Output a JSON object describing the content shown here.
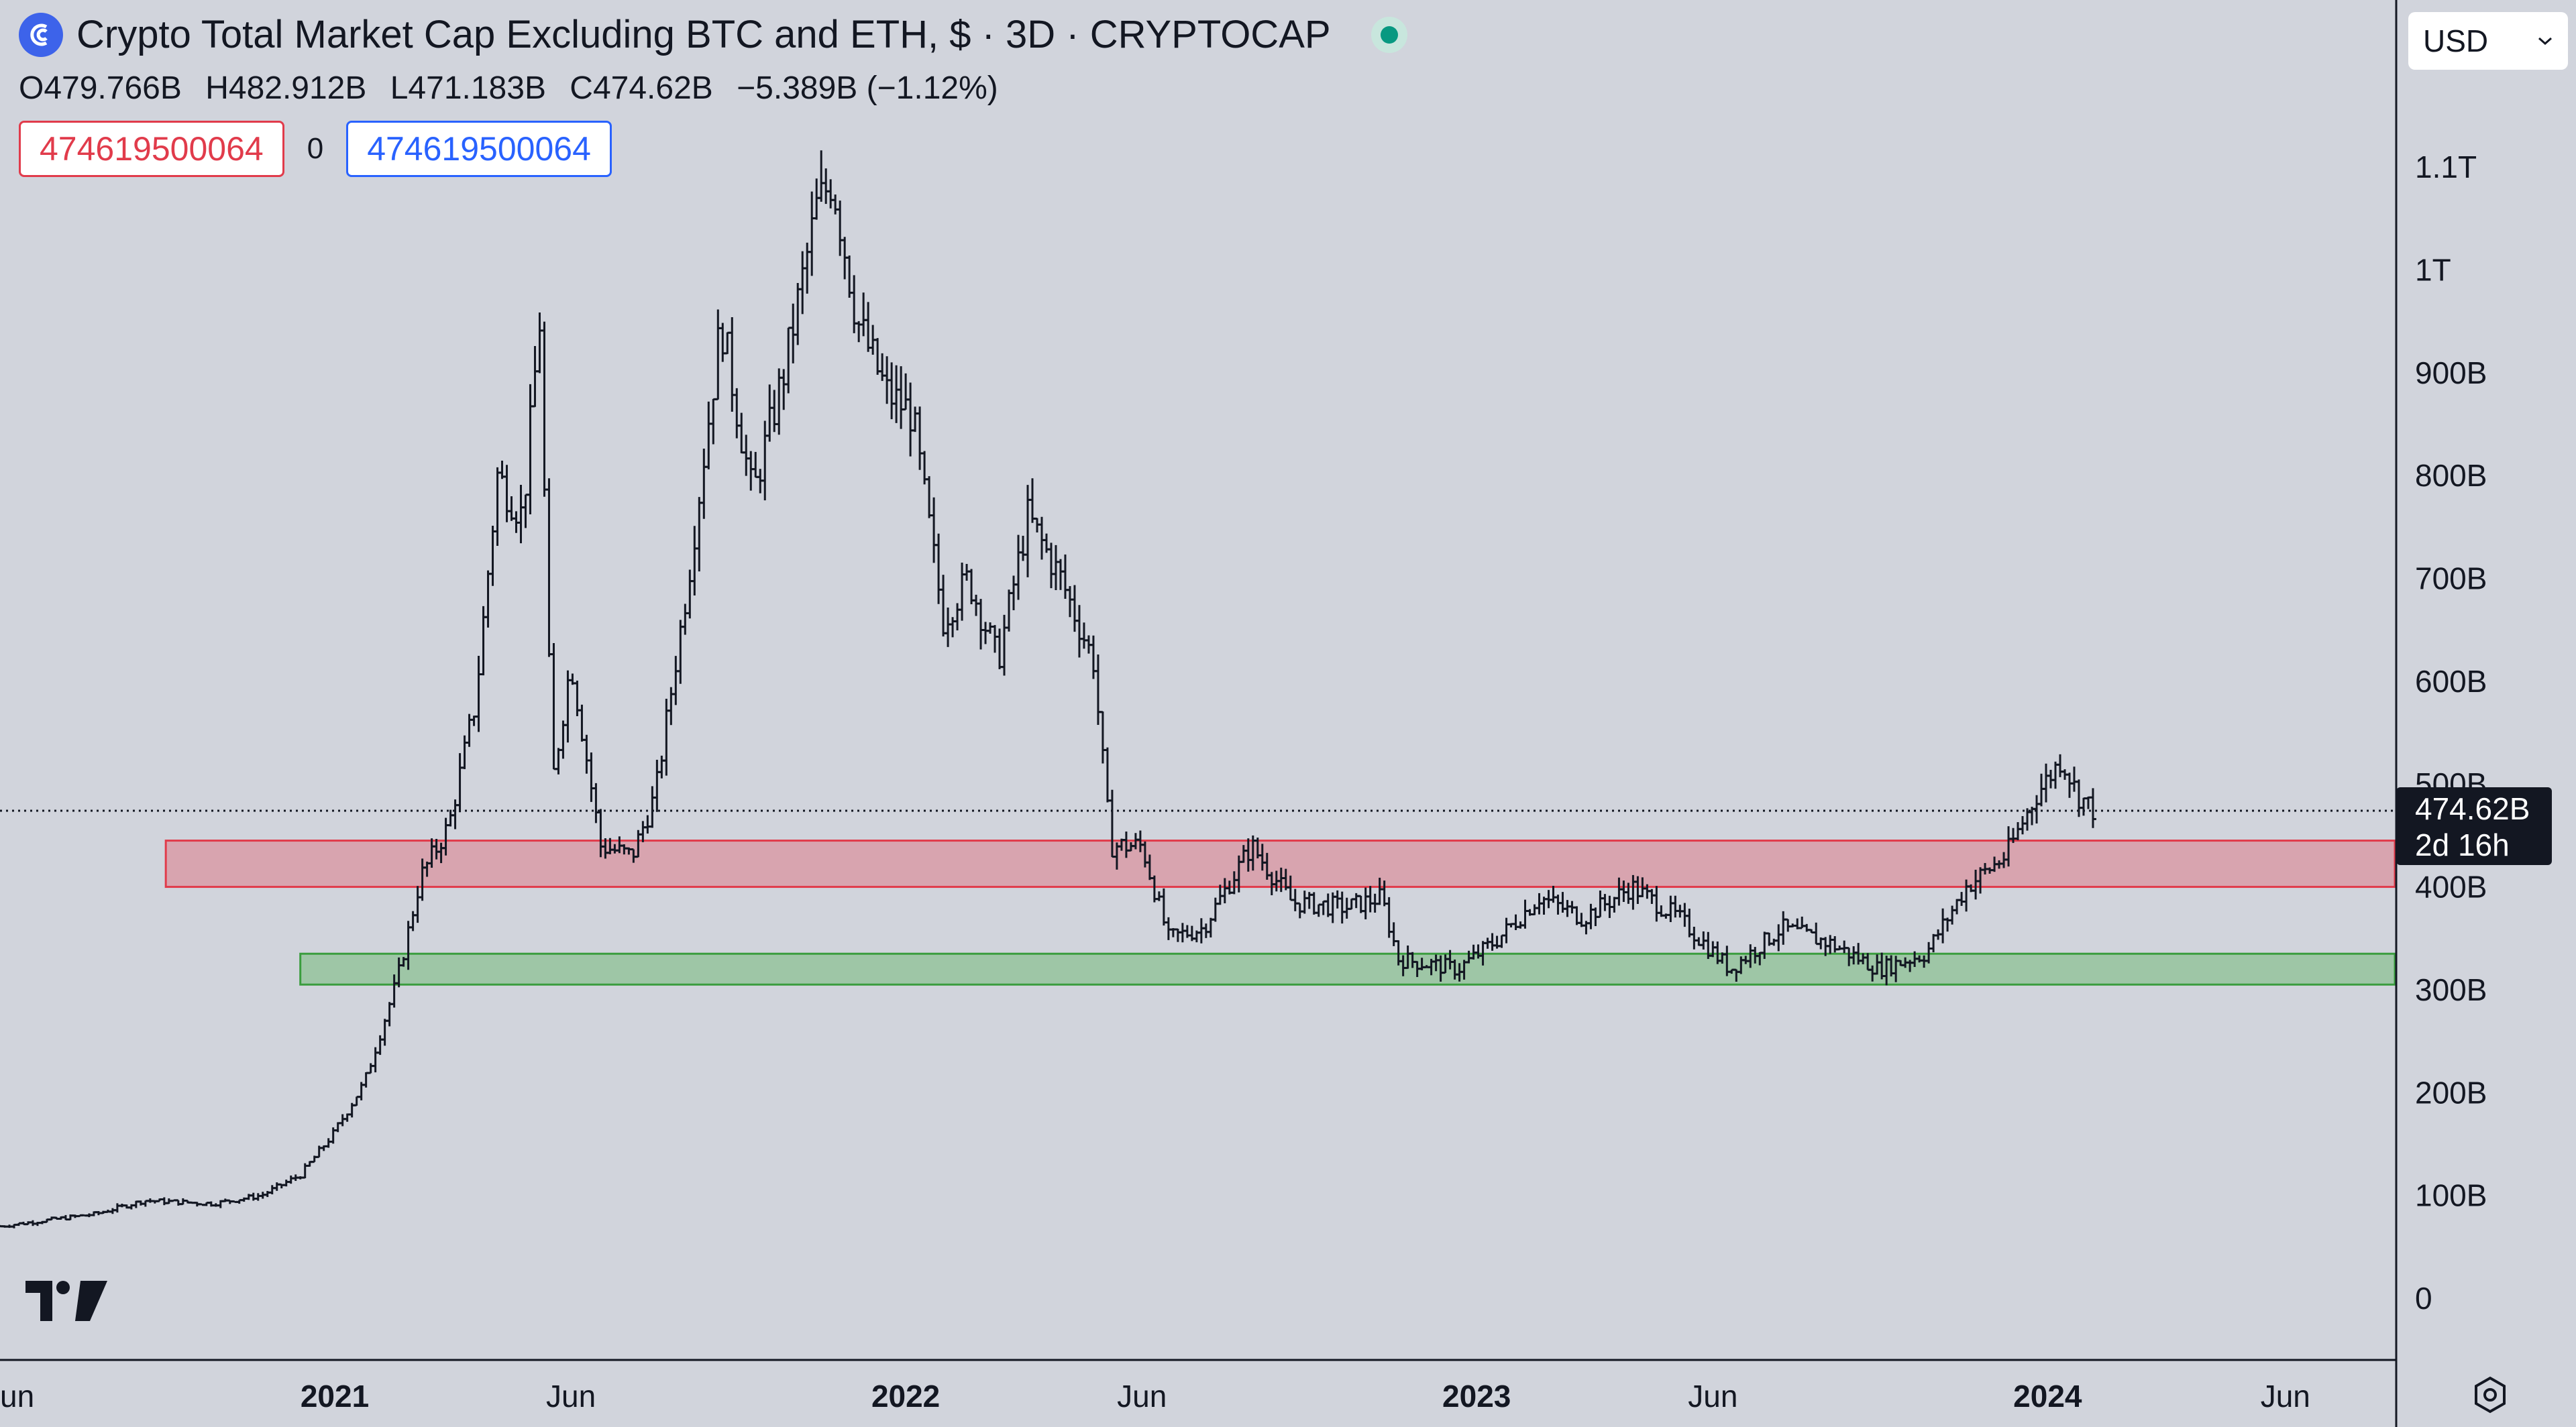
{
  "header": {
    "title": "Crypto Total Market Cap Excluding BTC and ETH, $ · 3D · CRYPTOCAP",
    "icon": "cryptocap-logo-icon",
    "status": "market-open-dot"
  },
  "ohlc": {
    "open": "O479.766B",
    "high": "H482.912B",
    "low": "L471.183B",
    "close": "C474.62B",
    "change": "−5.389B (−1.12%)"
  },
  "inputs": {
    "sell_price": "474619500064",
    "spread": "0",
    "buy_price": "474619500064"
  },
  "currency_select": {
    "value": "USD"
  },
  "colors": {
    "background": "#d1d4dc",
    "candle": "#131722",
    "resistance_fill": "rgba(229,86,103,0.38)",
    "resistance_border": "#e13b4b",
    "support_fill": "rgba(76,175,80,0.38)",
    "support_border": "#3a9d3e"
  },
  "chart_data": {
    "type": "candlestick",
    "title": "Crypto Total Market Cap Excluding BTC and ETH",
    "interval": "3D",
    "y_unit": "USD",
    "y_ticks": [
      "0",
      "100B",
      "200B",
      "300B",
      "400B",
      "500B",
      "600B",
      "700B",
      "800B",
      "900B",
      "1T",
      "1.1T"
    ],
    "y_tick_values": [
      0,
      100,
      200,
      300,
      400,
      500,
      600,
      700,
      800,
      900,
      1000,
      1100
    ],
    "ylim": [
      -20,
      1140
    ],
    "x_ticks": [
      {
        "label": "un",
        "date": "2020-06-01",
        "bold": false
      },
      {
        "label": "2021",
        "date": "2021-01-01",
        "bold": true
      },
      {
        "label": "Jun",
        "date": "2021-06-01",
        "bold": false
      },
      {
        "label": "2022",
        "date": "2022-01-01",
        "bold": true
      },
      {
        "label": "Jun",
        "date": "2022-06-01",
        "bold": false
      },
      {
        "label": "2023",
        "date": "2023-01-01",
        "bold": true
      },
      {
        "label": "Jun",
        "date": "2023-06-01",
        "bold": false
      },
      {
        "label": "2024",
        "date": "2024-01-01",
        "bold": true
      },
      {
        "label": "Jun",
        "date": "2024-06-01",
        "bold": false
      }
    ],
    "xlim": [
      "2020-06-01",
      "2024-08-10"
    ],
    "last_price": {
      "value": 474.62,
      "label": "474.62B",
      "countdown": "2d 16h"
    },
    "zones": [
      {
        "name": "resistance",
        "from_date": "2020-09-15",
        "y_low": 400,
        "y_high": 445
      },
      {
        "name": "support",
        "from_date": "2020-12-10",
        "y_low": 305,
        "y_high": 335
      }
    ],
    "series": [
      {
        "name": "",
        "unit": "billion USD",
        "close_path": [
          [
            "2020-06-01",
            70
          ],
          [
            "2020-08-01",
            82
          ],
          [
            "2020-09-01",
            95
          ],
          [
            "2020-10-15",
            92
          ],
          [
            "2020-11-15",
            100
          ],
          [
            "2020-12-10",
            120
          ],
          [
            "2020-12-31",
            160
          ],
          [
            "2021-01-20",
            210
          ],
          [
            "2021-02-10",
            310
          ],
          [
            "2021-02-25",
            410
          ],
          [
            "2021-03-15",
            460
          ],
          [
            "2021-04-01",
            580
          ],
          [
            "2021-04-15",
            800
          ],
          [
            "2021-05-01",
            760
          ],
          [
            "2021-05-12",
            950
          ],
          [
            "2021-05-20",
            500
          ],
          [
            "2021-06-01",
            620
          ],
          [
            "2021-06-20",
            440
          ],
          [
            "2021-07-10",
            430
          ],
          [
            "2021-07-25",
            490
          ],
          [
            "2021-08-15",
            700
          ],
          [
            "2021-09-05",
            950
          ],
          [
            "2021-09-25",
            780
          ],
          [
            "2021-10-15",
            900
          ],
          [
            "2021-11-05",
            1060
          ],
          [
            "2021-11-15",
            1090
          ],
          [
            "2021-12-01",
            950
          ],
          [
            "2021-12-20",
            880
          ],
          [
            "2022-01-05",
            860
          ],
          [
            "2022-01-25",
            660
          ],
          [
            "2022-02-10",
            700
          ],
          [
            "2022-03-01",
            620
          ],
          [
            "2022-03-20",
            760
          ],
          [
            "2022-04-10",
            700
          ],
          [
            "2022-05-01",
            620
          ],
          [
            "2022-05-12",
            440
          ],
          [
            "2022-06-01",
            440
          ],
          [
            "2022-06-18",
            350
          ],
          [
            "2022-07-10",
            360
          ],
          [
            "2022-08-10",
            440
          ],
          [
            "2022-09-05",
            385
          ],
          [
            "2022-10-10",
            380
          ],
          [
            "2022-11-01",
            390
          ],
          [
            "2022-11-12",
            330
          ],
          [
            "2022-12-20",
            320
          ],
          [
            "2023-01-15",
            350
          ],
          [
            "2023-02-10",
            390
          ],
          [
            "2023-03-10",
            370
          ],
          [
            "2023-04-10",
            400
          ],
          [
            "2023-05-10",
            370
          ],
          [
            "2023-06-12",
            320
          ],
          [
            "2023-07-15",
            360
          ],
          [
            "2023-08-15",
            345
          ],
          [
            "2023-09-15",
            320
          ],
          [
            "2023-10-15",
            335
          ],
          [
            "2023-11-10",
            400
          ],
          [
            "2023-12-05",
            430
          ],
          [
            "2023-12-25",
            490
          ],
          [
            "2024-01-10",
            525
          ],
          [
            "2024-01-20",
            490
          ],
          [
            "2024-01-30",
            475
          ]
        ]
      }
    ]
  }
}
